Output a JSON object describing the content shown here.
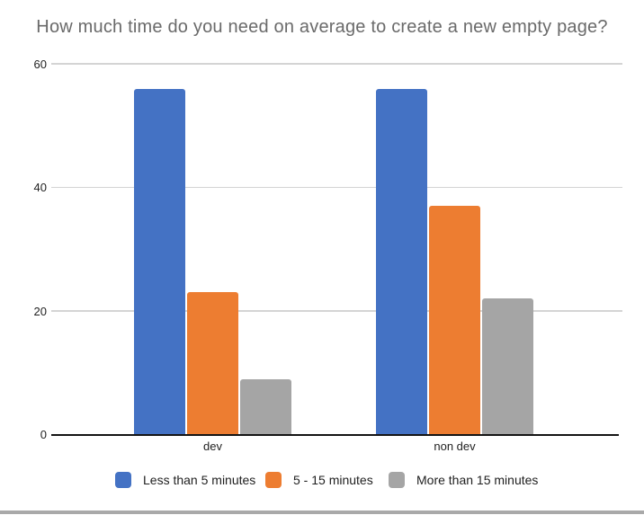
{
  "chart_data": {
    "type": "bar",
    "title": "How much time do you need on average to create a new empty page?",
    "categories": [
      "dev",
      "non dev"
    ],
    "series": [
      {
        "name": "Less than 5 minutes",
        "color": "#4472C4",
        "values": [
          56,
          56
        ]
      },
      {
        "name": "5 - 15 minutes",
        "color": "#ED7D31",
        "values": [
          23,
          37
        ]
      },
      {
        "name": "More than 15 minutes",
        "color": "#A5A5A5",
        "values": [
          9,
          22
        ]
      }
    ],
    "xlabel": "",
    "ylabel": "",
    "y_axis": {
      "ticks": [
        0,
        20,
        40,
        60
      ],
      "ylim": [
        0,
        60
      ],
      "grid": true
    },
    "legend_position": "bottom",
    "colors": {
      "gridline": "#d4d4d4",
      "axis_line": "#141414",
      "title_text": "#6a6a6a",
      "label_text": "#1f1f1f"
    }
  },
  "window": {
    "bottom_edge_color": "#a9a9a9"
  }
}
